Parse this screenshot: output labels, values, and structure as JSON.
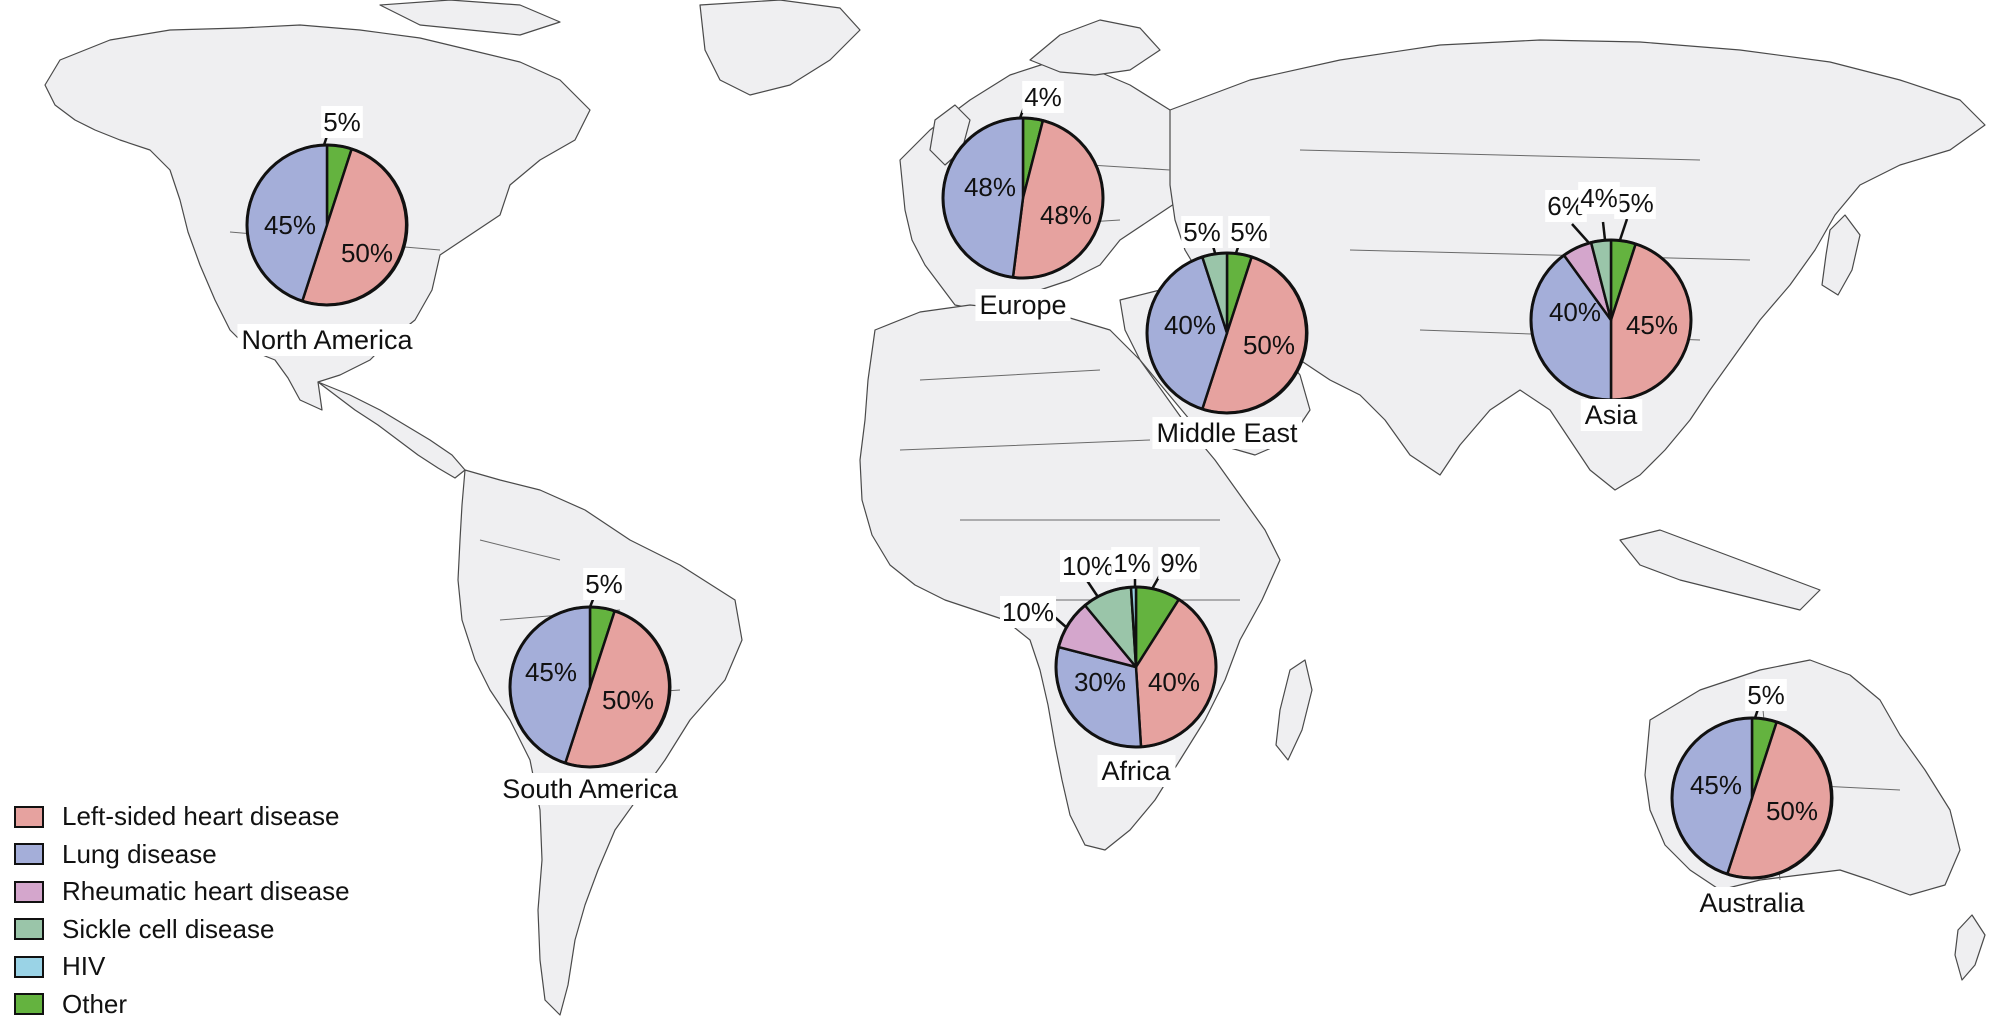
{
  "colors": {
    "left_sided": "#e6a29f",
    "lung": "#a4aed9",
    "rheumatic": "#d4a6cc",
    "sickle": "#9ac5a9",
    "hiv": "#9ad3e6",
    "other": "#64b33f"
  },
  "legend": [
    {
      "label": "Left-sided heart disease",
      "color_key": "left_sided"
    },
    {
      "label": "Lung disease",
      "color_key": "lung"
    },
    {
      "label": "Rheumatic heart disease",
      "color_key": "rheumatic"
    },
    {
      "label": "Sickle cell disease",
      "color_key": "sickle"
    },
    {
      "label": "HIV",
      "color_key": "hiv"
    },
    {
      "label": "Other",
      "color_key": "other"
    }
  ],
  "chart_data": {
    "type": "pie",
    "categories": [
      "Left-sided heart disease",
      "Lung disease",
      "Rheumatic heart disease",
      "Sickle cell disease",
      "HIV",
      "Other"
    ],
    "regions": [
      {
        "name": "North America",
        "slices": [
          {
            "category": "Other",
            "value": 5,
            "label": "5%"
          },
          {
            "category": "Left-sided heart disease",
            "value": 50,
            "label": "50%"
          },
          {
            "category": "Lung disease",
            "value": 45,
            "label": "45%"
          }
        ]
      },
      {
        "name": "Europe",
        "slices": [
          {
            "category": "Other",
            "value": 4,
            "label": "4%"
          },
          {
            "category": "Left-sided heart disease",
            "value": 48,
            "label": "48%"
          },
          {
            "category": "Lung disease",
            "value": 48,
            "label": "48%"
          }
        ]
      },
      {
        "name": "Middle East",
        "slices": [
          {
            "category": "Other",
            "value": 5,
            "label": "5%"
          },
          {
            "category": "Left-sided heart disease",
            "value": 50,
            "label": "50%"
          },
          {
            "category": "Lung disease",
            "value": 40,
            "label": "40%"
          },
          {
            "category": "Sickle cell disease",
            "value": 5,
            "label": "5%"
          }
        ]
      },
      {
        "name": "Asia",
        "slices": [
          {
            "category": "Other",
            "value": 5,
            "label": "5%"
          },
          {
            "category": "Left-sided heart disease",
            "value": 45,
            "label": "45%"
          },
          {
            "category": "Lung disease",
            "value": 40,
            "label": "40%"
          },
          {
            "category": "Rheumatic heart disease",
            "value": 6,
            "label": "6%"
          },
          {
            "category": "Sickle cell disease",
            "value": 4,
            "label": "4%"
          }
        ]
      },
      {
        "name": "South America",
        "slices": [
          {
            "category": "Other",
            "value": 5,
            "label": "5%"
          },
          {
            "category": "Left-sided heart disease",
            "value": 50,
            "label": "50%"
          },
          {
            "category": "Lung disease",
            "value": 45,
            "label": "45%"
          }
        ]
      },
      {
        "name": "Africa",
        "slices": [
          {
            "category": "Other",
            "value": 9,
            "label": "9%"
          },
          {
            "category": "Left-sided heart disease",
            "value": 40,
            "label": "40%"
          },
          {
            "category": "Lung disease",
            "value": 30,
            "label": "30%"
          },
          {
            "category": "Rheumatic heart disease",
            "value": 10,
            "label": "10%"
          },
          {
            "category": "Sickle cell disease",
            "value": 10,
            "label": "10%"
          },
          {
            "category": "HIV",
            "value": 1,
            "label": "1%"
          }
        ]
      },
      {
        "name": "Australia",
        "slices": [
          {
            "category": "Other",
            "value": 5,
            "label": "5%"
          },
          {
            "category": "Left-sided heart disease",
            "value": 50,
            "label": "50%"
          },
          {
            "category": "Lung disease",
            "value": 45,
            "label": "45%"
          }
        ]
      }
    ]
  }
}
